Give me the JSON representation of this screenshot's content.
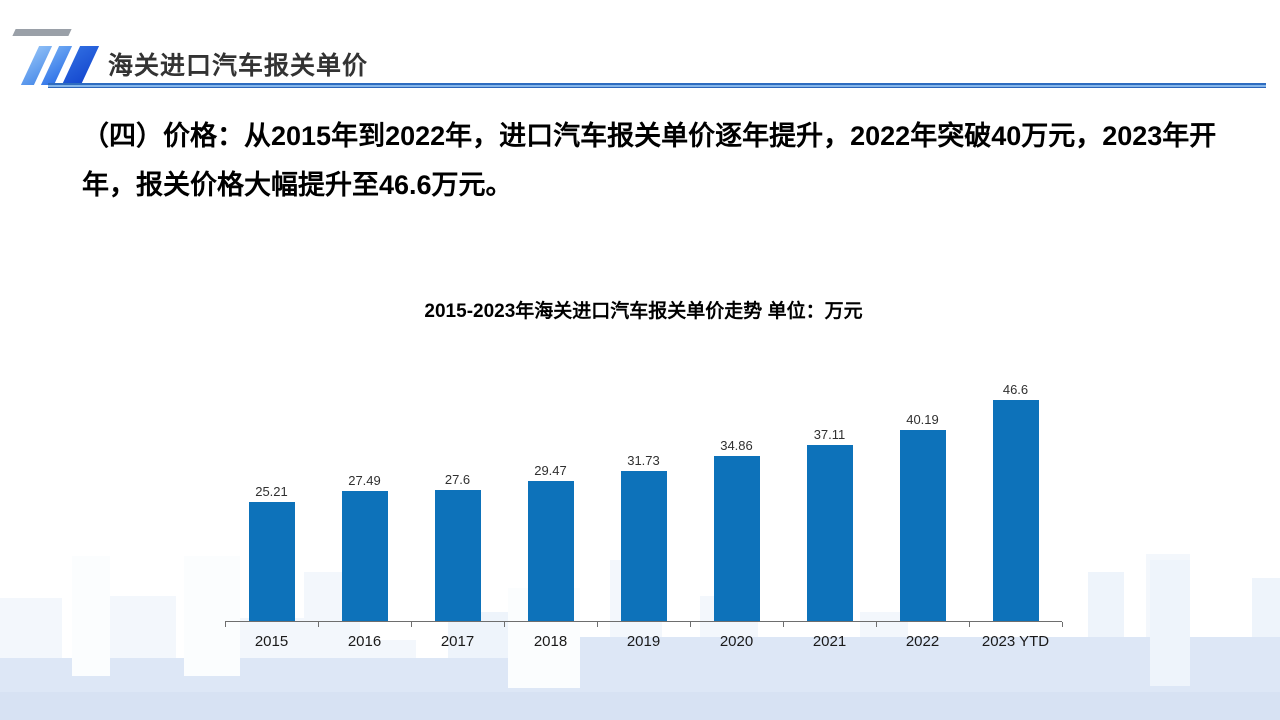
{
  "header": {
    "title": "海关进口汽车报关单价"
  },
  "body": {
    "paragraph": "（四）价格：从2015年到2022年，进口汽车报关单价逐年提升，2022年突破40万元，2023年开年，报关价格大幅提升至46.6万元。"
  },
  "chart_data": {
    "type": "bar",
    "title": "2015-2023年海关进口汽车报关单价走势 单位：万元",
    "categories": [
      "2015",
      "2016",
      "2017",
      "2018",
      "2019",
      "2020",
      "2021",
      "2022",
      "2023 YTD"
    ],
    "values": [
      25.21,
      27.49,
      27.6,
      29.47,
      31.73,
      34.86,
      37.11,
      40.19,
      46.6
    ],
    "ylim": [
      0,
      50
    ],
    "grid": false,
    "legend": "none",
    "data_labels": true,
    "bar_color": "#0d72ba"
  },
  "colors": {
    "accent_blue": "#1a52d8",
    "bar_blue": "#0d72ba",
    "underline_blue": "#2e6cc0",
    "skyline_blue": "#dde7f6",
    "title_text": "#333333"
  }
}
